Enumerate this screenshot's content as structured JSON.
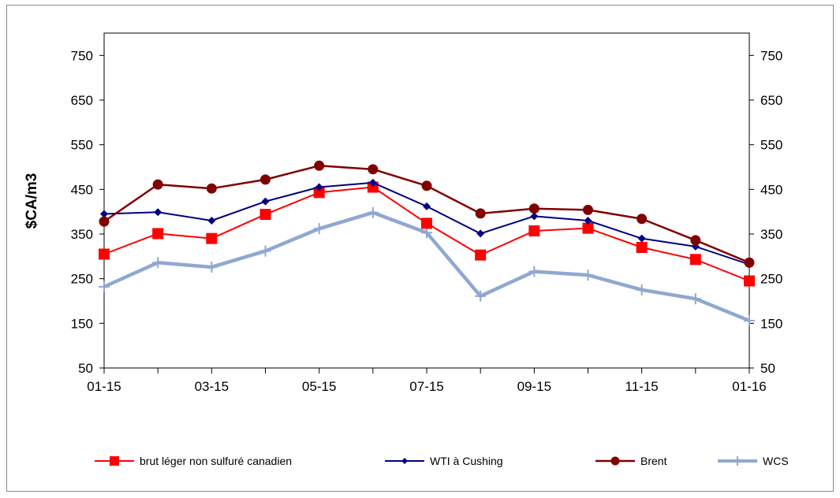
{
  "chart_data": {
    "type": "line",
    "ylabel": "$CA/m3",
    "ylim": [
      50,
      800
    ],
    "yticks": [
      50,
      150,
      250,
      350,
      450,
      550,
      650,
      750
    ],
    "x": [
      "01-15",
      "02-15",
      "03-15",
      "04-15",
      "05-15",
      "06-15",
      "07-15",
      "08-15",
      "09-15",
      "10-15",
      "11-15",
      "12-15",
      "01-16"
    ],
    "xtick_labels": [
      "01-15",
      "",
      "03-15",
      "",
      "05-15",
      "",
      "07-15",
      "",
      "09-15",
      "",
      "11-15",
      "",
      "01-16"
    ],
    "grid": false,
    "legend_position": "bottom",
    "series": [
      {
        "name": "brut léger non sulfuré canadien",
        "color": "#ff0000",
        "marker": "square",
        "values": [
          305,
          351,
          340,
          394,
          443,
          455,
          374,
          303,
          357,
          363,
          320,
          293,
          245
        ]
      },
      {
        "name": "WTI à Cushing",
        "color": "#000080",
        "marker": "diamond",
        "values": [
          395,
          399,
          380,
          423,
          455,
          465,
          412,
          351,
          390,
          380,
          340,
          322,
          282
        ]
      },
      {
        "name": "Brent",
        "color": "#800000",
        "marker": "circle",
        "values": [
          378,
          461,
          452,
          472,
          503,
          495,
          458,
          396,
          407,
          404,
          384,
          336,
          286
        ]
      },
      {
        "name": "WCS",
        "color": "#8fa8d0",
        "marker": "plus",
        "values": [
          232,
          286,
          276,
          312,
          362,
          398,
          353,
          211,
          266,
          258,
          225,
          205,
          156
        ]
      }
    ]
  }
}
